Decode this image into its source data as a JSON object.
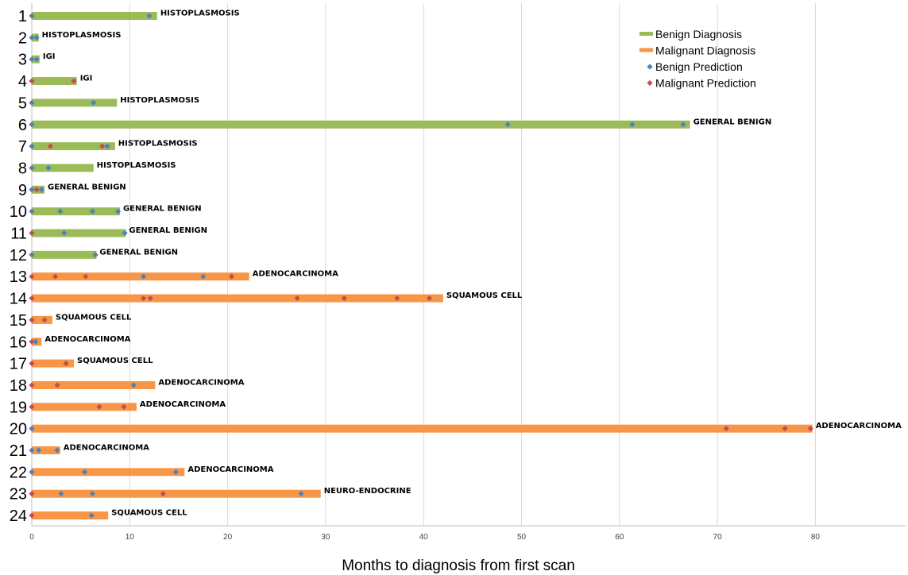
{
  "chart_data": {
    "type": "bar",
    "orientation": "horizontal",
    "xlabel": "Months to diagnosis from first scan",
    "xlim": [
      0,
      89
    ],
    "xticks": [
      0,
      10,
      20,
      30,
      40,
      50,
      60,
      70,
      80
    ],
    "grid": "vertical",
    "legend": {
      "placement": "top-right",
      "entries": [
        {
          "label": "Benign Diagnosis",
          "kind": "bar",
          "color": "#9BBB59"
        },
        {
          "label": "Malignant Diagnosis",
          "kind": "bar",
          "color": "#F79646"
        },
        {
          "label": "Benign Prediction",
          "kind": "marker",
          "color": "#4F81BD"
        },
        {
          "label": "Malignant Prediction",
          "kind": "marker",
          "color": "#C0504D"
        }
      ]
    },
    "series": [
      {
        "name": "Benign Diagnosis",
        "color": "#9BBB59"
      },
      {
        "name": "Malignant Diagnosis",
        "color": "#F79646"
      },
      {
        "name": "Benign Prediction",
        "color": "#4F81BD"
      },
      {
        "name": "Malignant Prediction",
        "color": "#C0504D"
      }
    ],
    "rows": [
      {
        "label": "1",
        "class": "benign",
        "months": 12.8,
        "diagnosis": "HISTOPLASMOSIS",
        "benign_predictions": [
          0,
          12
        ],
        "malignant_predictions": []
      },
      {
        "label": "2",
        "class": "benign",
        "months": 0.7,
        "diagnosis": "HISTOPLASMOSIS",
        "benign_predictions": [
          0,
          0.5
        ],
        "malignant_predictions": []
      },
      {
        "label": "3",
        "class": "benign",
        "months": 0.8,
        "diagnosis": "IGI",
        "benign_predictions": [
          0,
          0.5
        ],
        "malignant_predictions": []
      },
      {
        "label": "4",
        "class": "benign",
        "months": 4.6,
        "diagnosis": "IGI",
        "benign_predictions": [],
        "malignant_predictions": [
          0,
          4.3
        ]
      },
      {
        "label": "5",
        "class": "benign",
        "months": 8.7,
        "diagnosis": "HISTOPLASMOSIS",
        "benign_predictions": [
          0,
          6.3
        ],
        "malignant_predictions": []
      },
      {
        "label": "6",
        "class": "benign",
        "months": 67.2,
        "diagnosis": "GENERAL BENIGN",
        "benign_predictions": [
          0,
          48.6,
          61.3,
          66.5
        ],
        "malignant_predictions": []
      },
      {
        "label": "7",
        "class": "benign",
        "months": 8.5,
        "diagnosis": "HISTOPLASMOSIS",
        "benign_predictions": [
          0,
          7.7
        ],
        "malignant_predictions": [
          1.9,
          7.2
        ]
      },
      {
        "label": "8",
        "class": "benign",
        "months": 6.3,
        "diagnosis": "HISTOPLASMOSIS",
        "benign_predictions": [
          0,
          1.7
        ],
        "malignant_predictions": []
      },
      {
        "label": "9",
        "class": "benign",
        "months": 1.3,
        "diagnosis": "GENERAL BENIGN",
        "benign_predictions": [
          0,
          1.0
        ],
        "malignant_predictions": [
          0.5
        ]
      },
      {
        "label": "10",
        "class": "benign",
        "months": 9.0,
        "diagnosis": "GENERAL BENIGN",
        "benign_predictions": [
          0,
          2.9,
          6.2,
          8.8
        ],
        "malignant_predictions": []
      },
      {
        "label": "11",
        "class": "benign",
        "months": 9.6,
        "diagnosis": "GENERAL BENIGN",
        "benign_predictions": [
          3.3,
          9.5
        ],
        "malignant_predictions": [
          0
        ]
      },
      {
        "label": "12",
        "class": "benign",
        "months": 6.6,
        "diagnosis": "GENERAL BENIGN",
        "benign_predictions": [
          0,
          6.5
        ],
        "malignant_predictions": []
      },
      {
        "label": "13",
        "class": "malignant",
        "months": 22.2,
        "diagnosis": "ADENOCARCINOMA",
        "benign_predictions": [
          11.4,
          17.5
        ],
        "malignant_predictions": [
          0,
          2.4,
          5.5,
          20.4
        ]
      },
      {
        "label": "14",
        "class": "malignant",
        "months": 42.0,
        "diagnosis": "SQUAMOUS CELL",
        "benign_predictions": [],
        "malignant_predictions": [
          0,
          11.4,
          12.1,
          27.1,
          31.9,
          37.3,
          40.6
        ]
      },
      {
        "label": "15",
        "class": "malignant",
        "months": 2.1,
        "diagnosis": "SQUAMOUS CELL",
        "benign_predictions": [],
        "malignant_predictions": [
          0,
          1.3
        ]
      },
      {
        "label": "16",
        "class": "malignant",
        "months": 1.0,
        "diagnosis": "ADENOCARCINOMA",
        "benign_predictions": [
          0.4
        ],
        "malignant_predictions": [
          0
        ]
      },
      {
        "label": "17",
        "class": "malignant",
        "months": 4.3,
        "diagnosis": "SQUAMOUS CELL",
        "benign_predictions": [],
        "malignant_predictions": [
          0,
          3.5
        ]
      },
      {
        "label": "18",
        "class": "malignant",
        "months": 12.6,
        "diagnosis": "ADENOCARCINOMA",
        "benign_predictions": [
          10.4
        ],
        "malignant_predictions": [
          0,
          2.6
        ]
      },
      {
        "label": "19",
        "class": "malignant",
        "months": 10.7,
        "diagnosis": "ADENOCARCINOMA",
        "benign_predictions": [],
        "malignant_predictions": [
          0,
          6.9,
          9.4
        ]
      },
      {
        "label": "20",
        "class": "malignant",
        "months": 79.7,
        "diagnosis": "ADENOCARCINOMA",
        "benign_predictions": [
          0
        ],
        "malignant_predictions": [
          70.9,
          76.9,
          79.5
        ]
      },
      {
        "label": "21",
        "class": "malignant",
        "months": 2.9,
        "diagnosis": "ADENOCARCINOMA",
        "benign_predictions": [
          0,
          0.7,
          2.6
        ],
        "malignant_predictions": []
      },
      {
        "label": "22",
        "class": "malignant",
        "months": 15.6,
        "diagnosis": "ADENOCARCINOMA",
        "benign_predictions": [
          0,
          5.4,
          14.7
        ],
        "malignant_predictions": []
      },
      {
        "label": "23",
        "class": "malignant",
        "months": 29.5,
        "diagnosis": "NEURO-ENDOCRINE",
        "benign_predictions": [
          3.0,
          6.2,
          27.5
        ],
        "malignant_predictions": [
          0,
          13.4
        ]
      },
      {
        "label": "24",
        "class": "malignant",
        "months": 7.8,
        "diagnosis": "SQUAMOUS CELL",
        "benign_predictions": [
          6.1
        ],
        "malignant_predictions": [
          0
        ]
      }
    ]
  }
}
